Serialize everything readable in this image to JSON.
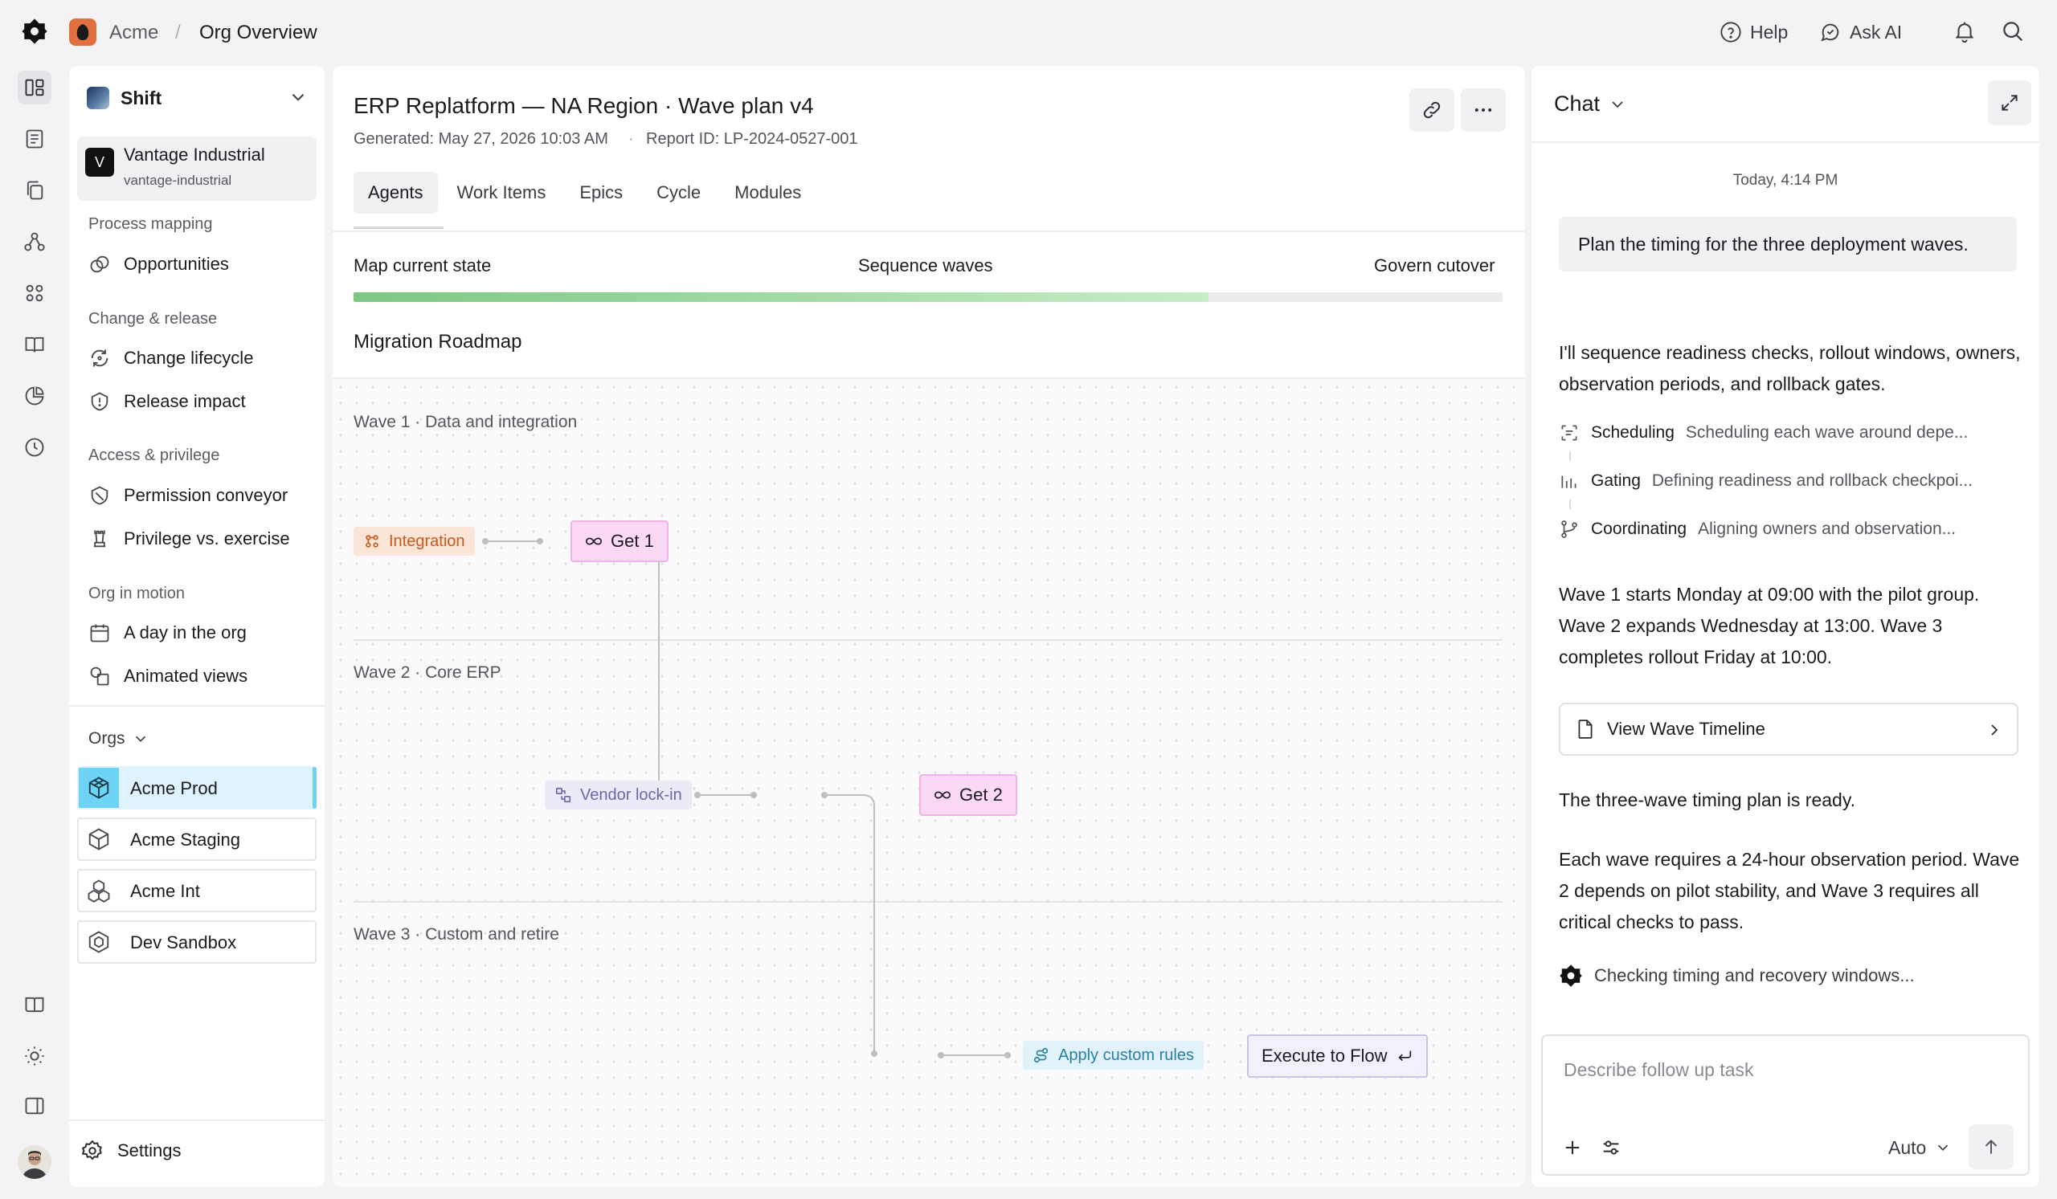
{
  "breadcrumb": {
    "org": "Acme",
    "separator": "/",
    "page": "Org Overview"
  },
  "topbar": {
    "help_label": "Help",
    "ask_ai_label": "Ask AI"
  },
  "icons": {
    "logo": "app-logo-icon",
    "help": "help-circle-icon",
    "ask_ai": "chat-bubble-icon",
    "bell": "bell-icon",
    "search": "search-icon"
  },
  "rail": {
    "items": [
      "dashboard-icon",
      "document-icon",
      "copy-icon",
      "flow-icon",
      "apps-grid-icon",
      "book-icon",
      "chart-pie-icon",
      "clock-icon"
    ],
    "bottom": [
      "docs-icon",
      "sun-icon",
      "panel-icon"
    ],
    "active_index": 0
  },
  "sidebar": {
    "workspace": "Shift",
    "account": {
      "badge": "V",
      "name": "Vantage Industrial",
      "handle": "vantage-industrial"
    },
    "sections": [
      {
        "label": "Process mapping",
        "items": [
          {
            "label": "Opportunities",
            "icon": "opportunities-icon"
          }
        ]
      },
      {
        "label": "Change & release",
        "items": [
          {
            "label": "Change lifecycle",
            "icon": "cycle-icon"
          },
          {
            "label": "Release impact",
            "icon": "shield-alert-icon"
          }
        ]
      },
      {
        "label": "Access & privilege",
        "items": [
          {
            "label": "Permission conveyor",
            "icon": "shield-icon"
          },
          {
            "label": "Privilege vs. exercise",
            "icon": "chess-icon"
          }
        ]
      },
      {
        "label": "Org in motion",
        "items": [
          {
            "label": "A day in the org",
            "icon": "calendar-icon"
          },
          {
            "label": "Animated views",
            "icon": "shapes-icon"
          }
        ]
      }
    ],
    "orgs_label": "Orgs",
    "orgs": [
      {
        "name": "Acme Prod",
        "active": true
      },
      {
        "name": "Acme Staging",
        "active": false
      },
      {
        "name": "Acme Int",
        "active": false
      },
      {
        "name": "Dev Sandbox",
        "active": false
      }
    ],
    "settings_label": "Settings"
  },
  "main": {
    "title": "ERP Replatform — NA Region · Wave plan v4",
    "generated": "Generated: May 27, 2026 10:03 AM",
    "meta_separator": "·",
    "report_id": "Report ID: LP-2024-0527-001",
    "tabs": [
      "Agents",
      "Work Items",
      "Epics",
      "Cycle",
      "Modules"
    ],
    "active_tab": "Agents",
    "stages": [
      "Map current state",
      "Sequence waves",
      "Govern cutover"
    ],
    "progress": 0.744,
    "accent_colors": {
      "progress_start": "#7cc783",
      "progress_end": "#c7edc6",
      "selected_org": "#6ed3f5"
    },
    "roadmap_title": "Migration Roadmap",
    "waves": [
      "Wave 1 · Data and integration",
      "Wave 2 · Core ERP",
      "Wave 3 · Custom and retire"
    ],
    "nodes": {
      "integration": "Integration",
      "get1": "Get 1",
      "vendor": "Vendor lock-in",
      "get2": "Get 2",
      "apply": "Apply custom rules",
      "execute": "Execute to Flow"
    }
  },
  "chat": {
    "title": "Chat",
    "timestamp": "Today, 4:14 PM",
    "user_message": "Plan the timing for the three deployment waves.",
    "ai_intro": "I'll sequence readiness checks, rollout windows, owners, observation periods, and rollback gates.",
    "steps": [
      {
        "name": "Scheduling",
        "desc": "Scheduling each wave around depe...",
        "icon": "scan-icon"
      },
      {
        "name": "Gating",
        "desc": "Defining readiness and rollback checkpoi...",
        "icon": "bars-icon"
      },
      {
        "name": "Coordinating",
        "desc": "Aligning owners and observation...",
        "icon": "branch-icon"
      }
    ],
    "schedule_text": "Wave 1 starts Monday at 09:00 with the pilot group. Wave 2 expands Wednesday at 13:00. Wave 3 completes rollout Friday at 10:00.",
    "card_label": "View Wave Timeline",
    "ready_text": "The three-wave timing plan is ready.",
    "observation_text": "Each wave requires a 24-hour observation period. Wave 2 depends on pilot stability, and Wave 3 requires all critical checks to pass.",
    "status_text": "Checking timing and recovery windows...",
    "composer_placeholder": "Describe follow up task",
    "model": "Auto"
  }
}
